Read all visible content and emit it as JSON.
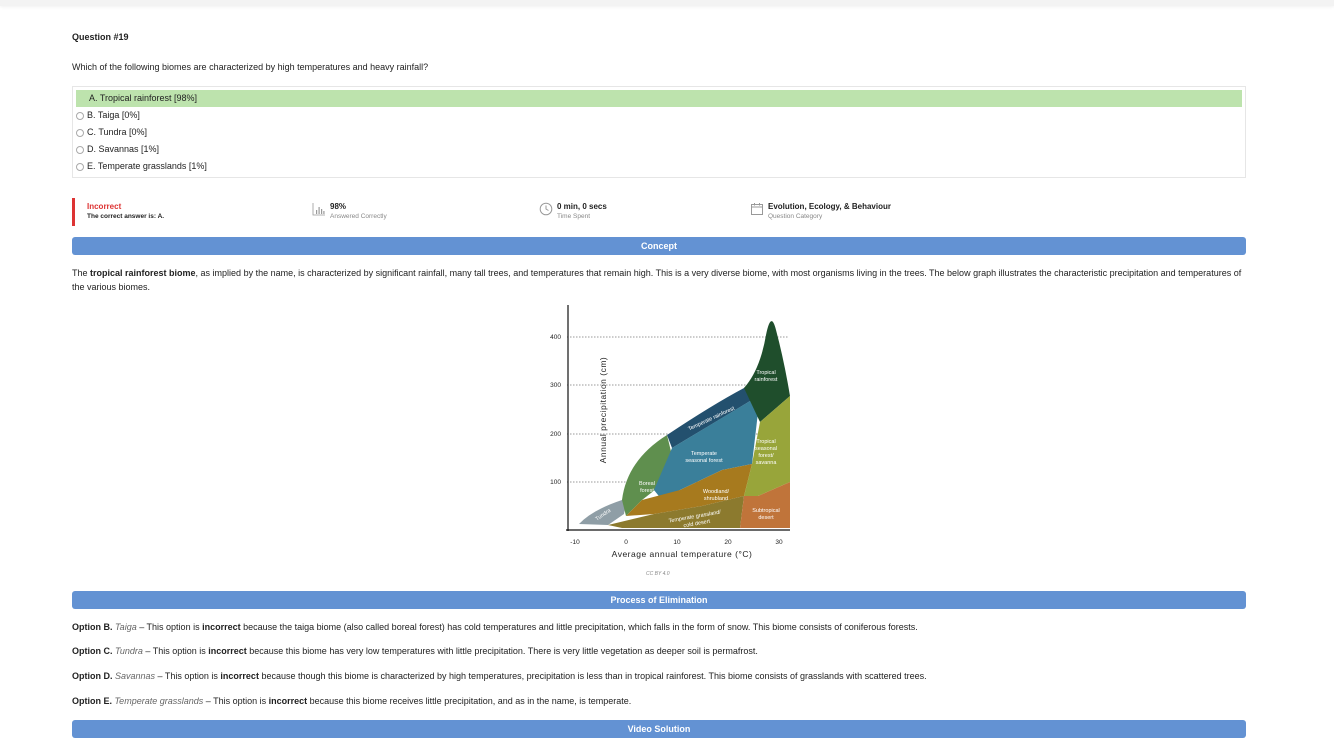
{
  "question": {
    "number": "Question #19",
    "text": "Which of the following biomes are characterized by high temperatures and heavy rainfall?",
    "choices": [
      {
        "label": "A. Tropical rainforest [98%]",
        "correct": true
      },
      {
        "label": "B. Taiga [0%]",
        "correct": false
      },
      {
        "label": "C. Tundra [0%]",
        "correct": false
      },
      {
        "label": "D. Savannas [1%]",
        "correct": false
      },
      {
        "label": "E. Temperate grasslands [1%]",
        "correct": false
      }
    ]
  },
  "stats": {
    "result": "Incorrect",
    "correct_answer": "The correct answer is: A.",
    "percent_value": "98%",
    "percent_label": "Answered Correctly",
    "time_value": "0 min, 0 secs",
    "time_label": "Time Spent",
    "category_value": "Evolution, Ecology, & Behaviour",
    "category_label": "Question Category"
  },
  "sections": {
    "concept": "Concept",
    "elimination": "Process of Elimination",
    "video": "Video Solution"
  },
  "concept": {
    "pre": "The ",
    "bold": "tropical rainforest biome",
    "post": ", as implied by the name, is characterized by significant rainfall, many tall trees, and temperatures that remain high. This is a very diverse biome, with most organisms living in the trees. The below graph illustrates the characteristic precipitation and temperatures of the various biomes."
  },
  "chart_data": {
    "type": "area",
    "xlabel": "Average annual temperature (°C)",
    "ylabel": "Annual precipitation (cm)",
    "xlim": [
      -10,
      30
    ],
    "ylim": [
      0,
      400
    ],
    "xticks": [
      "-10",
      "0",
      "10",
      "20",
      "30"
    ],
    "yticks": [
      "100",
      "200",
      "300",
      "400"
    ],
    "regions": [
      {
        "name": "Tundra",
        "color": "#8f9ea6"
      },
      {
        "name": "Boreal forest",
        "color": "#5f8f4e"
      },
      {
        "name": "Temperate rainforest",
        "color": "#23506e"
      },
      {
        "name": "Temperate seasonal forest",
        "color": "#3a7f9a"
      },
      {
        "name": "Woodland/ shrubland",
        "color": "#a77a1e"
      },
      {
        "name": "Temperate grassland/ cold desert",
        "color": "#8c7a2e"
      },
      {
        "name": "Tropical rainforest",
        "color": "#1f4e2c"
      },
      {
        "name": "Tropical seasonal forest/ savanna",
        "color": "#98a53a"
      },
      {
        "name": "Subtropical desert",
        "color": "#c0743a"
      }
    ],
    "credit": "CC BY 4.0"
  },
  "elimination": [
    {
      "opt": "Option B.",
      "name": "Taiga",
      "sep": " – This option is ",
      "kw": "incorrect",
      "rest": " because the taiga biome (also called boreal forest) has cold temperatures and little precipitation, which falls in the form of snow. This biome consists of coniferous forests."
    },
    {
      "opt": "Option C.",
      "name": "Tundra",
      "sep": " – This option is ",
      "kw": "incorrect",
      "rest": " because this biome has very low temperatures with little precipitation. There is very little vegetation as deeper soil is permafrost."
    },
    {
      "opt": "Option D.",
      "name": "Savannas",
      "sep": " – This option is ",
      "kw": "incorrect",
      "rest": " because though this biome is characterized by high temperatures, precipitation is less than in tropical rainforest. This biome consists of grasslands with scattered trees."
    },
    {
      "opt": "Option E.",
      "name": "Temperate grasslands",
      "sep": " – This option is ",
      "kw": "incorrect",
      "rest": " because this biome receives little precipitation, and as in the name, is temperate."
    }
  ]
}
